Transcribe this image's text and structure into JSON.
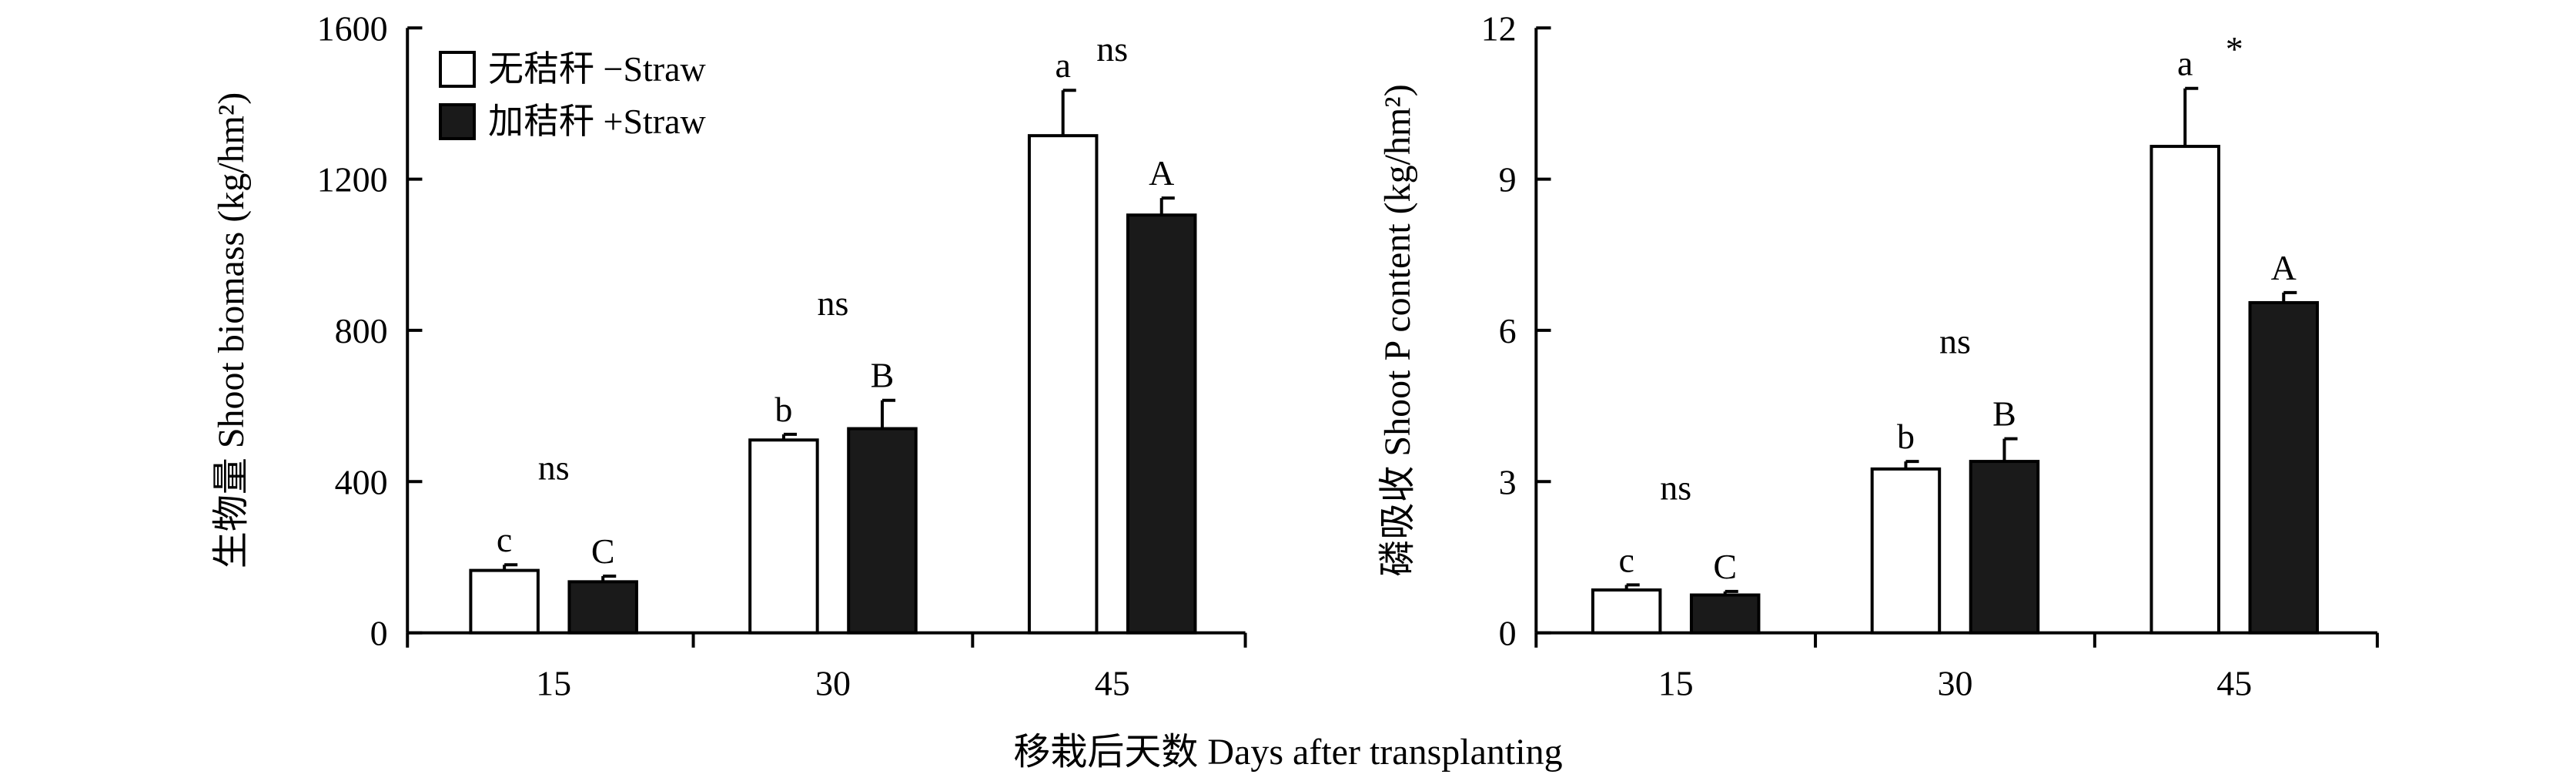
{
  "chart_data": [
    {
      "type": "bar",
      "categories": [
        "15",
        "30",
        "45"
      ],
      "ylabel": "生物量 Shoot biomass (kg/hm²)",
      "ylim": [
        0,
        1600
      ],
      "yticks": [
        "0",
        "400",
        "800",
        "1200",
        "1600"
      ],
      "series": [
        {
          "name": "无秸秆 −Straw",
          "values": [
            165,
            510,
            1315
          ],
          "errors": [
            15,
            15,
            120
          ],
          "letters": [
            "c",
            "b",
            "a"
          ]
        },
        {
          "name": "加秸秆 +Straw",
          "values": [
            135,
            540,
            1105
          ],
          "errors": [
            15,
            75,
            45
          ],
          "letters": [
            "C",
            "B",
            "A"
          ]
        }
      ],
      "significance": [
        "ns",
        "ns",
        "ns"
      ]
    },
    {
      "type": "bar",
      "categories": [
        "15",
        "30",
        "45"
      ],
      "ylabel": "磷吸收 Shoot P content (kg/hm²)",
      "ylim": [
        0,
        12
      ],
      "yticks": [
        "0",
        "3",
        "6",
        "9",
        "12"
      ],
      "series": [
        {
          "name": "无秸秆 −Straw",
          "values": [
            0.85,
            3.25,
            9.65
          ],
          "errors": [
            0.1,
            0.15,
            1.15
          ],
          "letters": [
            "c",
            "b",
            "a"
          ]
        },
        {
          "name": "加秸秆 +Straw",
          "values": [
            0.75,
            3.4,
            6.55
          ],
          "errors": [
            0.07,
            0.45,
            0.2
          ],
          "letters": [
            "C",
            "B",
            "A"
          ]
        }
      ],
      "significance": [
        "ns",
        "ns",
        "*"
      ]
    }
  ],
  "xlabel": "移栽后天数 Days after transplanting",
  "legend": {
    "placement": "top-left of left panel",
    "items": [
      {
        "label": "无秸秆 −Straw",
        "fill": "#ffffff"
      },
      {
        "label": "加秸秆 +Straw",
        "fill": "#1a1a1a"
      }
    ]
  },
  "colors": {
    "open_bar": "#ffffff",
    "filled_bar": "#1a1a1a",
    "axis": "#000000"
  }
}
